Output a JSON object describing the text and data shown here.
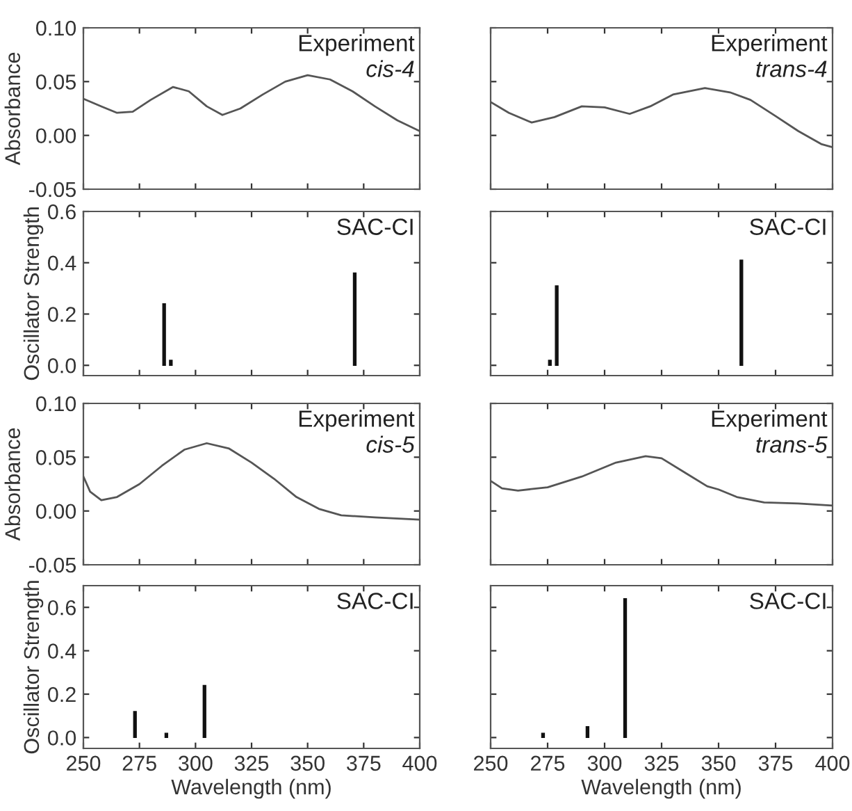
{
  "chart_data": [
    {
      "type": "line",
      "ylabel": "Absorbance",
      "annotations": [
        "Experiment",
        "cis-4"
      ],
      "xlim": [
        250,
        400
      ],
      "xticks": [
        250,
        275,
        300,
        325,
        350,
        375,
        400
      ],
      "ylim": [
        -0.05,
        0.1
      ],
      "yticks": [
        {
          "value": -0.05,
          "label": "-0.05"
        },
        {
          "value": 0.0,
          "label": "0.00"
        },
        {
          "value": 0.05,
          "label": "0.05"
        },
        {
          "value": 0.1,
          "label": "0.10"
        }
      ],
      "tick_labels": "y",
      "series": [
        {
          "color": "#555555",
          "x": [
            250,
            258,
            265,
            272,
            280,
            290,
            297,
            305,
            312,
            320,
            330,
            340,
            350,
            360,
            370,
            380,
            390,
            400
          ],
          "values": [
            0.034,
            0.027,
            0.021,
            0.022,
            0.033,
            0.045,
            0.041,
            0.027,
            0.019,
            0.025,
            0.038,
            0.05,
            0.056,
            0.052,
            0.041,
            0.027,
            0.014,
            0.004
          ]
        }
      ]
    },
    {
      "type": "line",
      "annotations": [
        "Experiment",
        "trans-4"
      ],
      "xlim": [
        250,
        400
      ],
      "xticks": [
        250,
        275,
        300,
        325,
        350,
        375,
        400
      ],
      "ylim": [
        -0.05,
        0.1
      ],
      "yticks": [
        {
          "value": -0.05,
          "label": null
        },
        {
          "value": 0.0,
          "label": null
        },
        {
          "value": 0.05,
          "label": null
        },
        {
          "value": 0.1,
          "label": null
        }
      ],
      "tick_labels": false,
      "series": [
        {
          "color": "#555555",
          "x": [
            250,
            258,
            268,
            278,
            290,
            300,
            311,
            320,
            330,
            344,
            355,
            364,
            375,
            385,
            395,
            400
          ],
          "values": [
            0.031,
            0.021,
            0.012,
            0.017,
            0.027,
            0.026,
            0.02,
            0.027,
            0.038,
            0.044,
            0.04,
            0.033,
            0.018,
            0.004,
            -0.008,
            -0.011
          ]
        }
      ]
    },
    {
      "type": "bar",
      "ylabel": "Oscillator Strength",
      "annotations": [
        "SAC-CI"
      ],
      "xlim": [
        250,
        400
      ],
      "xticks": [
        250,
        275,
        300,
        325,
        350,
        375,
        400
      ],
      "ylim": [
        -0.04,
        0.6
      ],
      "yticks": [
        {
          "value": 0.0,
          "label": "0.0"
        },
        {
          "value": 0.2,
          "label": "0.2"
        },
        {
          "value": 0.4,
          "label": "0.4"
        },
        {
          "value": 0.6,
          "label": "0.6"
        }
      ],
      "tick_labels": "y",
      "series": [
        {
          "color": "#111111",
          "x": [
            286,
            289,
            371
          ],
          "values": [
            0.24,
            0.02,
            0.36
          ]
        }
      ]
    },
    {
      "type": "bar",
      "annotations": [
        "SAC-CI"
      ],
      "xlim": [
        250,
        400
      ],
      "xticks": [
        250,
        275,
        300,
        325,
        350,
        375,
        400
      ],
      "ylim": [
        -0.04,
        0.6
      ],
      "yticks": [
        {
          "value": 0.0,
          "label": null
        },
        {
          "value": 0.2,
          "label": null
        },
        {
          "value": 0.4,
          "label": null
        },
        {
          "value": 0.6,
          "label": null
        }
      ],
      "tick_labels": false,
      "series": [
        {
          "color": "#111111",
          "x": [
            276,
            279,
            360
          ],
          "values": [
            0.02,
            0.31,
            0.41
          ]
        }
      ]
    },
    {
      "type": "line",
      "ylabel": "Absorbance",
      "annotations": [
        "Experiment",
        "cis-5"
      ],
      "xlim": [
        250,
        400
      ],
      "xticks": [
        250,
        275,
        300,
        325,
        350,
        375,
        400
      ],
      "ylim": [
        -0.05,
        0.1
      ],
      "yticks": [
        {
          "value": -0.05,
          "label": "-0.05"
        },
        {
          "value": 0.0,
          "label": "0.00"
        },
        {
          "value": 0.05,
          "label": "0.05"
        },
        {
          "value": 0.1,
          "label": "0.10"
        }
      ],
      "tick_labels": "y",
      "series": [
        {
          "color": "#555555",
          "x": [
            250,
            253,
            258,
            265,
            275,
            285,
            295,
            305,
            315,
            325,
            335,
            345,
            355,
            365,
            380,
            400
          ],
          "values": [
            0.032,
            0.018,
            0.01,
            0.013,
            0.025,
            0.042,
            0.057,
            0.063,
            0.058,
            0.045,
            0.03,
            0.013,
            0.002,
            -0.004,
            -0.006,
            -0.008
          ]
        }
      ]
    },
    {
      "type": "line",
      "annotations": [
        "Experiment",
        "trans-5"
      ],
      "xlim": [
        250,
        400
      ],
      "xticks": [
        250,
        275,
        300,
        325,
        350,
        375,
        400
      ],
      "ylim": [
        -0.05,
        0.1
      ],
      "yticks": [
        {
          "value": -0.05,
          "label": null
        },
        {
          "value": 0.0,
          "label": null
        },
        {
          "value": 0.05,
          "label": null
        },
        {
          "value": 0.1,
          "label": null
        }
      ],
      "tick_labels": false,
      "series": [
        {
          "color": "#555555",
          "x": [
            250,
            255,
            262,
            275,
            290,
            305,
            318,
            325,
            335,
            345,
            350,
            358,
            370,
            385,
            400
          ],
          "values": [
            0.028,
            0.021,
            0.019,
            0.022,
            0.032,
            0.045,
            0.051,
            0.049,
            0.036,
            0.023,
            0.02,
            0.013,
            0.008,
            0.007,
            0.005
          ]
        }
      ]
    },
    {
      "type": "bar",
      "xlabel": "Wavelength (nm)",
      "ylabel": "Oscillator Strength",
      "annotations": [
        "SAC-CI"
      ],
      "xlim": [
        250,
        400
      ],
      "xticks": [
        250,
        275,
        300,
        325,
        350,
        375,
        400
      ],
      "ylim": [
        -0.05,
        0.7
      ],
      "yticks": [
        {
          "value": 0.0,
          "label": "0.0"
        },
        {
          "value": 0.2,
          "label": "0.2"
        },
        {
          "value": 0.4,
          "label": "0.4"
        },
        {
          "value": 0.6,
          "label": "0.6"
        }
      ],
      "series": [
        {
          "color": "#111111",
          "x": [
            273,
            287,
            304
          ],
          "values": [
            0.12,
            0.02,
            0.24
          ]
        }
      ]
    },
    {
      "type": "bar",
      "xlabel": "Wavelength (nm)",
      "annotations": [
        "SAC-CI"
      ],
      "xlim": [
        250,
        400
      ],
      "xticks": [
        250,
        275,
        300,
        325,
        350,
        375,
        400
      ],
      "ylim": [
        -0.05,
        0.7
      ],
      "yticks": [
        {
          "value": 0.0,
          "label": null
        },
        {
          "value": 0.2,
          "label": null
        },
        {
          "value": 0.4,
          "label": null
        },
        {
          "value": 0.6,
          "label": null
        }
      ],
      "tick_labels": "x",
      "series": [
        {
          "color": "#111111",
          "x": [
            273,
            292.5,
            309
          ],
          "values": [
            0.02,
            0.05,
            0.64
          ]
        }
      ]
    }
  ]
}
